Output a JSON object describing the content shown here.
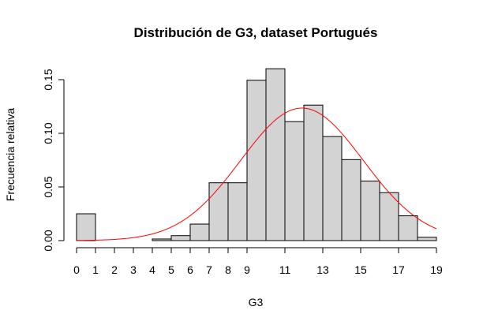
{
  "chart_data": {
    "type": "bar",
    "title": "Distribución de G3, dataset Portugués",
    "xlabel": "G3",
    "ylabel": "Frecuencia relativa",
    "xlim": [
      0,
      19
    ],
    "ylim": [
      0,
      0.15
    ],
    "x_ticks": [
      "0",
      "1",
      "2",
      "3",
      "4",
      "5",
      "6",
      "7",
      "8",
      "9",
      "11",
      "13",
      "15",
      "17",
      "19"
    ],
    "y_ticks": [
      "0.00",
      "0.05",
      "0.10",
      "0.15"
    ],
    "bins": [
      {
        "from": 0,
        "to": 1,
        "value": 0.025
      },
      {
        "from": 1,
        "to": 2,
        "value": 0.0
      },
      {
        "from": 2,
        "to": 3,
        "value": 0.0
      },
      {
        "from": 3,
        "to": 4,
        "value": 0.0
      },
      {
        "from": 4,
        "to": 5,
        "value": 0.0015
      },
      {
        "from": 5,
        "to": 6,
        "value": 0.0046
      },
      {
        "from": 6,
        "to": 7,
        "value": 0.0154
      },
      {
        "from": 7,
        "to": 8,
        "value": 0.0539
      },
      {
        "from": 8,
        "to": 9,
        "value": 0.0539
      },
      {
        "from": 9,
        "to": 10,
        "value": 0.1495
      },
      {
        "from": 10,
        "to": 11,
        "value": 0.1602
      },
      {
        "from": 11,
        "to": 12,
        "value": 0.1109
      },
      {
        "from": 12,
        "to": 13,
        "value": 0.1263
      },
      {
        "from": 13,
        "to": 14,
        "value": 0.097
      },
      {
        "from": 14,
        "to": 15,
        "value": 0.0755
      },
      {
        "from": 15,
        "to": 16,
        "value": 0.0555
      },
      {
        "from": 16,
        "to": 17,
        "value": 0.0447
      },
      {
        "from": 17,
        "to": 18,
        "value": 0.0231
      },
      {
        "from": 18,
        "to": 19,
        "value": 0.0031
      }
    ],
    "density_curve": {
      "type": "normal",
      "mean": 11.9,
      "sd": 3.23,
      "color": "#ff0000"
    },
    "bar_fill": "#d3d3d3",
    "bar_stroke": "#000000",
    "grid": false,
    "legend": "none"
  }
}
